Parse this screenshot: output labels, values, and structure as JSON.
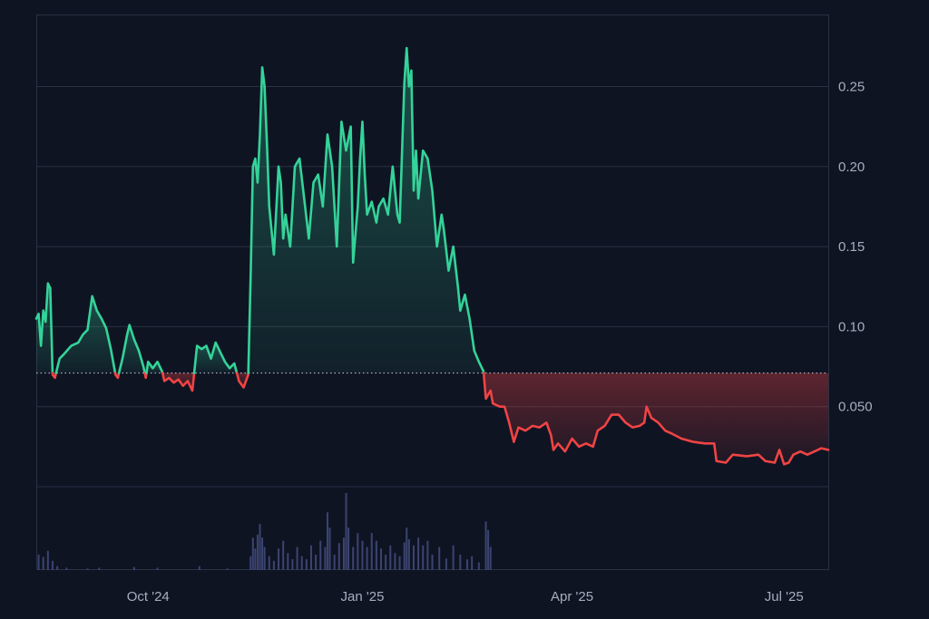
{
  "chart_data": {
    "type": "area",
    "title": "",
    "xlabel": "",
    "ylabel": "",
    "baseline": 0.071,
    "ylim": [
      0,
      0.295
    ],
    "y_ticks": [
      {
        "value": 0.25,
        "label": "0.25"
      },
      {
        "value": 0.2,
        "label": "0.20"
      },
      {
        "value": 0.15,
        "label": "0.15"
      },
      {
        "value": 0.1,
        "label": "0.10"
      },
      {
        "value": 0.05,
        "label": "0.050"
      }
    ],
    "x_ticks": [
      {
        "date": "2024-10-01",
        "label": "Oct '24"
      },
      {
        "date": "2025-01-01",
        "label": "Jan '25"
      },
      {
        "date": "2025-04-01",
        "label": "Apr '25"
      },
      {
        "date": "2025-07-01",
        "label": "Jul '25"
      }
    ],
    "x_range": [
      "2024-08-14",
      "2025-07-20"
    ],
    "grid": true,
    "colors": {
      "above": "#34d399",
      "below": "#ef4444",
      "volume": "#3b4470",
      "background": "#0f1423",
      "grid": "#2a3142",
      "axis_text": "#a7adbd"
    },
    "price": [
      [
        "2024-08-14",
        0.105
      ],
      [
        "2024-08-15",
        0.108
      ],
      [
        "2024-08-16",
        0.088
      ],
      [
        "2024-08-17",
        0.11
      ],
      [
        "2024-08-18",
        0.103
      ],
      [
        "2024-08-19",
        0.127
      ],
      [
        "2024-08-20",
        0.124
      ],
      [
        "2024-08-21",
        0.07
      ],
      [
        "2024-08-22",
        0.068
      ],
      [
        "2024-08-24",
        0.08
      ],
      [
        "2024-08-26",
        0.083
      ],
      [
        "2024-08-29",
        0.088
      ],
      [
        "2024-09-01",
        0.09
      ],
      [
        "2024-09-03",
        0.095
      ],
      [
        "2024-09-05",
        0.098
      ],
      [
        "2024-09-07",
        0.119
      ],
      [
        "2024-09-09",
        0.11
      ],
      [
        "2024-09-11",
        0.105
      ],
      [
        "2024-09-13",
        0.099
      ],
      [
        "2024-09-15",
        0.086
      ],
      [
        "2024-09-17",
        0.07
      ],
      [
        "2024-09-18",
        0.068
      ],
      [
        "2024-09-20",
        0.08
      ],
      [
        "2024-09-22",
        0.095
      ],
      [
        "2024-09-23",
        0.101
      ],
      [
        "2024-09-25",
        0.092
      ],
      [
        "2024-09-27",
        0.085
      ],
      [
        "2024-09-29",
        0.075
      ],
      [
        "2024-09-30",
        0.068
      ],
      [
        "2024-10-01",
        0.078
      ],
      [
        "2024-10-03",
        0.074
      ],
      [
        "2024-10-05",
        0.078
      ],
      [
        "2024-10-07",
        0.072
      ],
      [
        "2024-10-08",
        0.066
      ],
      [
        "2024-10-10",
        0.068
      ],
      [
        "2024-10-12",
        0.065
      ],
      [
        "2024-10-14",
        0.067
      ],
      [
        "2024-10-16",
        0.063
      ],
      [
        "2024-10-18",
        0.066
      ],
      [
        "2024-10-20",
        0.06
      ],
      [
        "2024-10-22",
        0.088
      ],
      [
        "2024-10-24",
        0.086
      ],
      [
        "2024-10-26",
        0.088
      ],
      [
        "2024-10-28",
        0.08
      ],
      [
        "2024-10-30",
        0.09
      ],
      [
        "2024-11-01",
        0.084
      ],
      [
        "2024-11-03",
        0.078
      ],
      [
        "2024-11-05",
        0.074
      ],
      [
        "2024-11-07",
        0.077
      ],
      [
        "2024-11-09",
        0.066
      ],
      [
        "2024-11-11",
        0.062
      ],
      [
        "2024-11-13",
        0.07
      ],
      [
        "2024-11-14",
        0.13
      ],
      [
        "2024-11-15",
        0.2
      ],
      [
        "2024-11-16",
        0.205
      ],
      [
        "2024-11-17",
        0.19
      ],
      [
        "2024-11-18",
        0.22
      ],
      [
        "2024-11-19",
        0.262
      ],
      [
        "2024-11-20",
        0.25
      ],
      [
        "2024-11-21",
        0.215
      ],
      [
        "2024-11-22",
        0.175
      ],
      [
        "2024-11-24",
        0.145
      ],
      [
        "2024-11-26",
        0.2
      ],
      [
        "2024-11-27",
        0.19
      ],
      [
        "2024-11-28",
        0.155
      ],
      [
        "2024-11-29",
        0.17
      ],
      [
        "2024-12-01",
        0.15
      ],
      [
        "2024-12-03",
        0.2
      ],
      [
        "2024-12-05",
        0.205
      ],
      [
        "2024-12-07",
        0.18
      ],
      [
        "2024-12-09",
        0.155
      ],
      [
        "2024-12-11",
        0.19
      ],
      [
        "2024-12-13",
        0.195
      ],
      [
        "2024-12-15",
        0.175
      ],
      [
        "2024-12-17",
        0.22
      ],
      [
        "2024-12-19",
        0.2
      ],
      [
        "2024-12-21",
        0.15
      ],
      [
        "2024-12-23",
        0.228
      ],
      [
        "2024-12-25",
        0.21
      ],
      [
        "2024-12-27",
        0.225
      ],
      [
        "2024-12-28",
        0.14
      ],
      [
        "2024-12-30",
        0.175
      ],
      [
        "2024-12-31",
        0.205
      ],
      [
        "2025-01-01",
        0.228
      ],
      [
        "2025-01-02",
        0.195
      ],
      [
        "2025-01-03",
        0.17
      ],
      [
        "2025-01-05",
        0.178
      ],
      [
        "2025-01-07",
        0.165
      ],
      [
        "2025-01-08",
        0.175
      ],
      [
        "2025-01-10",
        0.18
      ],
      [
        "2025-01-12",
        0.17
      ],
      [
        "2025-01-14",
        0.2
      ],
      [
        "2025-01-16",
        0.17
      ],
      [
        "2025-01-17",
        0.165
      ],
      [
        "2025-01-19",
        0.252
      ],
      [
        "2025-01-20",
        0.274
      ],
      [
        "2025-01-21",
        0.25
      ],
      [
        "2025-01-22",
        0.26
      ],
      [
        "2025-01-23",
        0.185
      ],
      [
        "2025-01-24",
        0.21
      ],
      [
        "2025-01-25",
        0.18
      ],
      [
        "2025-01-27",
        0.21
      ],
      [
        "2025-01-29",
        0.205
      ],
      [
        "2025-01-31",
        0.185
      ],
      [
        "2025-02-02",
        0.15
      ],
      [
        "2025-02-04",
        0.17
      ],
      [
        "2025-02-05",
        0.16
      ],
      [
        "2025-02-07",
        0.135
      ],
      [
        "2025-02-09",
        0.15
      ],
      [
        "2025-02-11",
        0.125
      ],
      [
        "2025-02-12",
        0.11
      ],
      [
        "2025-02-14",
        0.12
      ],
      [
        "2025-02-16",
        0.105
      ],
      [
        "2025-02-18",
        0.085
      ],
      [
        "2025-02-20",
        0.078
      ],
      [
        "2025-02-22",
        0.072
      ],
      [
        "2025-02-23",
        0.055
      ],
      [
        "2025-02-25",
        0.06
      ],
      [
        "2025-02-26",
        0.052
      ],
      [
        "2025-03-01",
        0.05
      ],
      [
        "2025-03-03",
        0.05
      ],
      [
        "2025-03-05",
        0.04
      ],
      [
        "2025-03-07",
        0.028
      ],
      [
        "2025-03-09",
        0.037
      ],
      [
        "2025-03-12",
        0.035
      ],
      [
        "2025-03-15",
        0.038
      ],
      [
        "2025-03-18",
        0.037
      ],
      [
        "2025-03-21",
        0.04
      ],
      [
        "2025-03-23",
        0.032
      ],
      [
        "2025-03-24",
        0.023
      ],
      [
        "2025-03-26",
        0.027
      ],
      [
        "2025-03-29",
        0.022
      ],
      [
        "2025-04-01",
        0.03
      ],
      [
        "2025-04-04",
        0.025
      ],
      [
        "2025-04-07",
        0.027
      ],
      [
        "2025-04-10",
        0.025
      ],
      [
        "2025-04-12",
        0.035
      ],
      [
        "2025-04-15",
        0.038
      ],
      [
        "2025-04-18",
        0.045
      ],
      [
        "2025-04-21",
        0.045
      ],
      [
        "2025-04-24",
        0.04
      ],
      [
        "2025-04-27",
        0.037
      ],
      [
        "2025-04-30",
        0.038
      ],
      [
        "2025-05-02",
        0.04
      ],
      [
        "2025-05-03",
        0.05
      ],
      [
        "2025-05-05",
        0.043
      ],
      [
        "2025-05-08",
        0.04
      ],
      [
        "2025-05-11",
        0.035
      ],
      [
        "2025-05-14",
        0.033
      ],
      [
        "2025-05-18",
        0.03
      ],
      [
        "2025-05-23",
        0.028
      ],
      [
        "2025-05-28",
        0.027
      ],
      [
        "2025-06-01",
        0.027
      ],
      [
        "2025-06-02",
        0.016
      ],
      [
        "2025-06-06",
        0.015
      ],
      [
        "2025-06-09",
        0.02
      ],
      [
        "2025-06-15",
        0.019
      ],
      [
        "2025-06-20",
        0.02
      ],
      [
        "2025-06-23",
        0.016
      ],
      [
        "2025-06-27",
        0.015
      ],
      [
        "2025-06-29",
        0.023
      ],
      [
        "2025-07-01",
        0.014
      ],
      [
        "2025-07-03",
        0.015
      ],
      [
        "2025-07-05",
        0.02
      ],
      [
        "2025-07-08",
        0.022
      ],
      [
        "2025-07-11",
        0.02
      ],
      [
        "2025-07-14",
        0.022
      ],
      [
        "2025-07-17",
        0.024
      ],
      [
        "2025-07-20",
        0.023
      ]
    ],
    "volume_max": 1.0,
    "volume": [
      [
        "2024-08-15",
        0.2
      ],
      [
        "2024-08-17",
        0.17
      ],
      [
        "2024-08-19",
        0.25
      ],
      [
        "2024-08-21",
        0.12
      ],
      [
        "2024-08-23",
        0.05
      ],
      [
        "2024-08-27",
        0.03
      ],
      [
        "2024-09-05",
        0.02
      ],
      [
        "2024-09-10",
        0.03
      ],
      [
        "2024-09-25",
        0.04
      ],
      [
        "2024-10-05",
        0.03
      ],
      [
        "2024-10-23",
        0.05
      ],
      [
        "2024-11-04",
        0.02
      ],
      [
        "2024-11-14",
        0.18
      ],
      [
        "2024-11-15",
        0.42
      ],
      [
        "2024-11-16",
        0.28
      ],
      [
        "2024-11-17",
        0.46
      ],
      [
        "2024-11-18",
        0.6
      ],
      [
        "2024-11-19",
        0.42
      ],
      [
        "2024-11-20",
        0.3
      ],
      [
        "2024-11-22",
        0.18
      ],
      [
        "2024-11-24",
        0.12
      ],
      [
        "2024-11-26",
        0.28
      ],
      [
        "2024-11-28",
        0.38
      ],
      [
        "2024-11-30",
        0.22
      ],
      [
        "2024-12-02",
        0.14
      ],
      [
        "2024-12-04",
        0.3
      ],
      [
        "2024-12-06",
        0.18
      ],
      [
        "2024-12-08",
        0.14
      ],
      [
        "2024-12-10",
        0.32
      ],
      [
        "2024-12-12",
        0.2
      ],
      [
        "2024-12-14",
        0.38
      ],
      [
        "2024-12-16",
        0.3
      ],
      [
        "2024-12-17",
        0.75
      ],
      [
        "2024-12-18",
        0.55
      ],
      [
        "2024-12-20",
        0.2
      ],
      [
        "2024-12-22",
        0.35
      ],
      [
        "2024-12-24",
        0.42
      ],
      [
        "2024-12-25",
        1.0
      ],
      [
        "2024-12-26",
        0.55
      ],
      [
        "2024-12-28",
        0.3
      ],
      [
        "2024-12-30",
        0.48
      ],
      [
        "2025-01-01",
        0.38
      ],
      [
        "2025-01-03",
        0.3
      ],
      [
        "2025-01-05",
        0.48
      ],
      [
        "2025-01-07",
        0.38
      ],
      [
        "2025-01-09",
        0.28
      ],
      [
        "2025-01-11",
        0.2
      ],
      [
        "2025-01-13",
        0.32
      ],
      [
        "2025-01-15",
        0.22
      ],
      [
        "2025-01-17",
        0.18
      ],
      [
        "2025-01-19",
        0.36
      ],
      [
        "2025-01-20",
        0.55
      ],
      [
        "2025-01-21",
        0.4
      ],
      [
        "2025-01-23",
        0.32
      ],
      [
        "2025-01-25",
        0.42
      ],
      [
        "2025-01-27",
        0.32
      ],
      [
        "2025-01-29",
        0.38
      ],
      [
        "2025-01-31",
        0.2
      ],
      [
        "2025-02-03",
        0.3
      ],
      [
        "2025-02-06",
        0.15
      ],
      [
        "2025-02-09",
        0.32
      ],
      [
        "2025-02-12",
        0.2
      ],
      [
        "2025-02-15",
        0.14
      ],
      [
        "2025-02-17",
        0.18
      ],
      [
        "2025-02-20",
        0.1
      ],
      [
        "2025-02-23",
        0.63
      ],
      [
        "2025-02-24",
        0.52
      ],
      [
        "2025-02-25",
        0.3
      ]
    ]
  }
}
